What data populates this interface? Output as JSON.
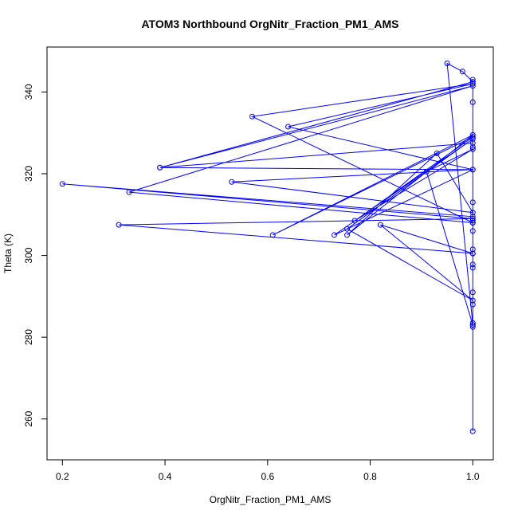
{
  "chart_data": {
    "type": "line",
    "title": "ATOM3 Northbound OrgNitr_Fraction_PM1_AMS",
    "xlabel": "OrgNitr_Fraction_PM1_AMS",
    "ylabel": "Theta (K)",
    "xlim": [
      0.17,
      1.04
    ],
    "ylim": [
      250,
      351
    ],
    "x_ticks": [
      0.2,
      0.4,
      0.6,
      0.8,
      1.0
    ],
    "x_tick_labels": [
      "0.2",
      "0.4",
      "0.6",
      "0.8",
      "1.0"
    ],
    "y_ticks": [
      260,
      280,
      300,
      320,
      340
    ],
    "y_tick_labels": [
      "260",
      "280",
      "300",
      "320",
      "340"
    ],
    "grid": false,
    "series": [
      {
        "color": "#0000ff",
        "marker": "open-circle",
        "x": [
          1.0,
          1.0,
          1.0,
          1.0,
          1.0,
          1.0,
          1.0,
          1.0,
          1.0,
          1.0,
          1.0,
          1.0,
          1.0,
          0.2,
          1.0,
          0.31,
          1.0,
          0.82,
          1.0,
          0.755,
          1.0,
          0.73,
          1.0,
          0.64,
          1.0,
          0.57,
          1.0,
          0.33,
          1.0,
          0.39,
          1.0,
          0.53,
          1.0,
          0.93,
          0.755,
          1.0,
          0.61,
          1.0,
          0.77,
          1.0,
          0.91,
          1.0,
          0.95,
          0.98,
          1.0,
          0.39,
          1.0,
          1.0,
          1.0,
          1.0,
          1.0,
          1.0,
          1.0
        ],
        "y": [
          257,
          282.5,
          283.5,
          288,
          291,
          297,
          297.8,
          300.5,
          301.5,
          306,
          308,
          308.5,
          309.5,
          317.5,
          309,
          307.5,
          300.5,
          307.5,
          289,
          306.5,
          328.5,
          305,
          321,
          331.5,
          342,
          334,
          308,
          315.5,
          341.5,
          321.5,
          321,
          318,
          310.5,
          325,
          305,
          329.5,
          305,
          329,
          308.5,
          326,
          320.5,
          283,
          347,
          345,
          342.5,
          321.5,
          327.5,
          326.5,
          313,
          337.5,
          343,
          329,
          283
        ]
      }
    ]
  }
}
